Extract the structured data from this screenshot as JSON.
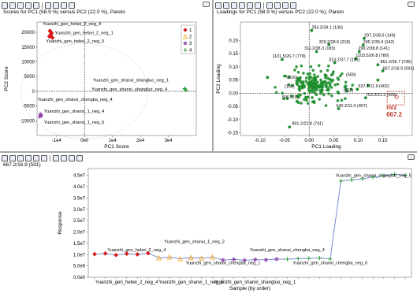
{
  "scores": {
    "title": "Scores for PC1 (58.9 %) versus PC2 (22.0 %), Pareto",
    "chart_data": {
      "type": "scatter",
      "title": "Scores for PC1 (58.9 %) versus PC2 (22.0 %), Pareto",
      "xlabel": "PC1 Score",
      "ylabel": "PC2 Score",
      "xlim": [
        -17000,
        40000
      ],
      "ylim": [
        -15000,
        23500
      ],
      "xticks": [
        {
          "v": -10000,
          "label": "-1e4"
        },
        {
          "v": 0,
          "label": "0e0"
        },
        {
          "v": 10000,
          "label": "1e4"
        },
        {
          "v": 20000,
          "label": "2e4"
        },
        {
          "v": 30000,
          "label": "3e4"
        }
      ],
      "yticks": [
        -10000,
        -5000,
        0,
        5000,
        10000,
        15000,
        20000
      ],
      "legend": [
        {
          "name": "1",
          "color": "#e8161b",
          "marker": "diamond"
        },
        {
          "name": "2",
          "color": "#f5a623",
          "marker": "triangle"
        },
        {
          "name": "3",
          "color": "#8e44ad",
          "marker": "star"
        },
        {
          "name": "4",
          "color": "#2e9b3a",
          "marker": "plus"
        }
      ],
      "series": [
        {
          "name": "1",
          "points": [
            [
              -12400,
              20500
            ],
            [
              -12100,
              19200
            ],
            [
              -11800,
              19800
            ],
            [
              -12600,
              18600
            ],
            [
              -11500,
              18200
            ]
          ]
        },
        {
          "name": "3",
          "points": [
            [
              -15800,
              -7800
            ],
            [
              -15500,
              -8200
            ],
            [
              -16000,
              -8600
            ]
          ]
        },
        {
          "name": "4",
          "points": [
            [
              36000,
              700
            ],
            [
              36300,
              400
            ],
            [
              35800,
              900
            ]
          ]
        }
      ],
      "annotations": [
        {
          "text": "Yuanzhi_gen_hebei_2_neg_4",
          "x": -15000,
          "y": 22400
        },
        {
          "text": "Yuanzhi_gen_hebei_2_neg_1",
          "x": -10600,
          "y": 19400
        },
        {
          "text": "Yuanzhi_gen_hebei_2_neg_5",
          "x": -13800,
          "y": 16500
        },
        {
          "text": "Yuanzhi_gen_shanxi_shangluo_neg_1",
          "x": 3000,
          "y": 3300
        },
        {
          "text": "Yuanzhi_gen_shanxi_shangluo_neg_4",
          "x": 2500,
          "y": 200
        },
        {
          "text": "Yuanzhi_gen_shanxi_chengba_neg_4",
          "x": -16800,
          "y": -3300
        },
        {
          "text": "Yuanzhi_gen_shanxi_1_neg_4",
          "x": -14500,
          "y": -7300
        },
        {
          "text": "Yuanzhi_gen_shanxi_1_neg_6",
          "x": -14500,
          "y": -11000
        }
      ]
    }
  },
  "loadings": {
    "title": "Loadings for PC1 (58.9 %) versus PC2 (22.0 %), Pareto",
    "chart_data": {
      "type": "scatter",
      "title": "Loadings for PC1 (58.9 %) versus PC2 (22.0 %), Pareto",
      "xlabel": "PC1 Loading",
      "ylabel": "PC2 Loading",
      "xlim": [
        -0.14,
        0.21
      ],
      "ylim": [
        -0.16,
        0.27
      ],
      "xticks": [
        -0.1,
        -0.05,
        0.0,
        0.05,
        0.1,
        0.15
      ],
      "xtick_labels": [
        "-0.10",
        "-0.05",
        "0.00",
        "0.05",
        "0.10",
        "0.15"
      ],
      "yticks": [
        -0.15,
        -0.1,
        -0.05,
        0.0,
        0.05,
        0.1,
        0.15,
        0.2
      ],
      "ytick_labels": [
        "-0.15",
        "-0.10",
        "-0.05",
        "0.00",
        "0.05",
        "0.10",
        "0.15",
        "0.20"
      ],
      "point_color": "#1f8f2e",
      "highlight": {
        "x": 0.178,
        "y": -0.02,
        "label": "m/z",
        "value": "667.2"
      },
      "annotations": [
        {
          "text": "293.2/39.1 (136)",
          "x": 0.005,
          "y": 0.245
        },
        {
          "text": "297.2/39.0 (149)",
          "x": 0.112,
          "y": 0.215
        },
        {
          "text": "329.2/28.5 (218)",
          "x": 0.02,
          "y": 0.19
        },
        {
          "text": "295.2/39.4 (142)",
          "x": 0.11,
          "y": 0.19
        },
        {
          "text": "311.2/38.3 (183)",
          "x": -0.01,
          "y": 0.165
        },
        {
          "text": "299.2/38.8 (141)",
          "x": 0.1,
          "y": 0.165
        },
        {
          "text": "1101.5/26.7 (778)",
          "x": -0.075,
          "y": 0.135
        },
        {
          "text": "1103.5/26.8 (780)",
          "x": 0.095,
          "y": 0.138
        },
        {
          "text": "313.2/37.7 (191)",
          "x": 0.04,
          "y": 0.122
        },
        {
          "text": "861.2/36.7 (736)",
          "x": 0.145,
          "y": 0.115
        },
        {
          "text": "667.2/16.9 (591)",
          "x": 0.15,
          "y": 0.09
        },
        {
          "text": "(816)",
          "x": -0.045,
          "y": 0.055
        },
        {
          "text": "(559)",
          "x": 0.075,
          "y": 0.065
        },
        {
          "text": "(106)",
          "x": -0.05,
          "y": 0.02
        },
        {
          "text": "537.1/11.9 (402)",
          "x": 0.1,
          "y": 0.022
        },
        {
          "text": "(652)",
          "x": 0.07,
          "y": 0.005
        },
        {
          "text": "753.2/21.3 (606)",
          "x": 0.115,
          "y": -0.01
        },
        {
          "text": "596 (33)",
          "x": -0.055,
          "y": -0.02
        },
        {
          "text": "640.2/11.0 (457)",
          "x": 0.055,
          "y": -0.052
        },
        {
          "text": "891.2/22.8 (741)",
          "x": -0.035,
          "y": -0.12
        }
      ]
    }
  },
  "trend": {
    "title": "667.2/16.9 (591)",
    "chart_data": {
      "type": "line",
      "title": "667.2/16.9 (591)",
      "xlabel": "Sample (by order)",
      "ylabel": "Response",
      "ylim": [
        0,
        48000000
      ],
      "yticks": [
        0,
        5000000,
        10000000,
        15000000,
        20000000,
        25000000,
        30000000,
        35000000,
        40000000,
        45000000
      ],
      "ytick_labels": [
        "0.0e0",
        "5.0e6",
        "1.0e7",
        "1.5e7",
        "2.0e7",
        "2.5e7",
        "3.0e7",
        "3.5e7",
        "4.0e7",
        "4.5e7"
      ],
      "n_samples": 30,
      "x_labels": [
        {
          "index": 3,
          "text": "Yuanzhi_gen_hebei_2_neg_4"
        },
        {
          "index": 9,
          "text": "Yuanzhi_gen_shanxi_1_neg_5"
        },
        {
          "index": 15,
          "text": "Yuanzhi_gen_shanxi_shangluo_neg_1"
        }
      ],
      "series": [
        {
          "name": "1",
          "color": "#e8161b",
          "marker": "diamond",
          "points": [
            [
              0,
              10200000
            ],
            [
              1,
              10500000
            ],
            [
              2,
              9800000
            ],
            [
              3,
              10400000
            ],
            [
              4,
              10100000
            ],
            [
              5,
              10600000
            ]
          ]
        },
        {
          "name": "2",
          "color": "#f5a623",
          "marker": "triangle",
          "points": [
            [
              6,
              8600000
            ],
            [
              7,
              8900000
            ],
            [
              8,
              8200000
            ],
            [
              9,
              8700000
            ],
            [
              10,
              8400000
            ],
            [
              11,
              8900000
            ]
          ]
        },
        {
          "name": "3",
          "color": "#8e44ad",
          "marker": "star",
          "points": [
            [
              12,
              7600000
            ],
            [
              13,
              7900000
            ],
            [
              14,
              7500000
            ],
            [
              15,
              7800000
            ],
            [
              16,
              7700000
            ],
            [
              17,
              8000000
            ]
          ]
        },
        {
          "name": "4",
          "color": "#2e9b3a",
          "marker": "plus",
          "points": [
            [
              18,
              8000000
            ],
            [
              19,
              8200000
            ],
            [
              20,
              8300000
            ],
            [
              21,
              8500000
            ],
            [
              22,
              8100000
            ],
            [
              23,
              42500000
            ],
            [
              24,
              43000000
            ],
            [
              25,
              43500000
            ],
            [
              26,
              44200000
            ],
            [
              27,
              44800000
            ],
            [
              28,
              45500000
            ],
            [
              29,
              45100000
            ]
          ]
        }
      ],
      "annotations": [
        {
          "text": "Yuanzhi_gen_hebei_2_neg_4",
          "x": 1.2,
          "y": 11500000
        },
        {
          "text": "Yuanzhi_gen_shanxi_1_neg_2",
          "x": 6.5,
          "y": 15200000
        },
        {
          "text": "Yuanzhi_gen_shanxi_chengba_neg_1",
          "x": 8.5,
          "y": 5800000
        },
        {
          "text": "Yuanzhi_gen_shanxi_chengba_neg_4",
          "x": 14.5,
          "y": 11500000
        },
        {
          "text": "Yuanzhi_gen_shanxi_chengba_neg_6",
          "x": 18.5,
          "y": 5800000
        },
        {
          "text": "Yuanzhi_gen_shanxi_shangluo_neg_5",
          "x": 22.5,
          "y": 44300000
        }
      ]
    }
  }
}
